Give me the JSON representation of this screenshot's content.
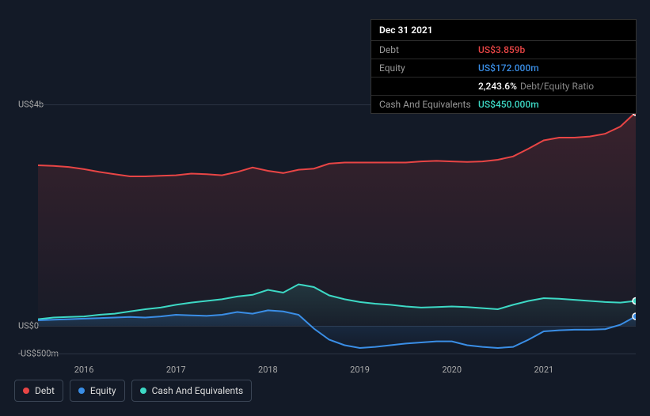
{
  "chart": {
    "type": "area",
    "background_color": "#131a27",
    "grid_color": "#2a3342",
    "axis_label_color": "#aaaaaa",
    "axis_fontsize": 11,
    "x_years": [
      2016,
      2017,
      2018,
      2019,
      2020,
      2021
    ],
    "x_start": 2015.5,
    "x_end": 2022.0,
    "y_ticks": [
      {
        "value": 4000,
        "label": "US$4b"
      },
      {
        "value": 0,
        "label": "US$0"
      },
      {
        "value": -500,
        "label": "-US$500m"
      }
    ],
    "y_min": -600,
    "y_max": 4200,
    "series": {
      "debt": {
        "label": "Debt",
        "color": "#e84545",
        "fill_opacity": 0.18,
        "values": [
          2900,
          2890,
          2870,
          2830,
          2780,
          2740,
          2700,
          2700,
          2710,
          2720,
          2750,
          2740,
          2720,
          2780,
          2860,
          2800,
          2760,
          2820,
          2840,
          2930,
          2950,
          2950,
          2950,
          2950,
          2950,
          2970,
          2980,
          2970,
          2960,
          2970,
          3000,
          3060,
          3200,
          3350,
          3400,
          3400,
          3420,
          3470,
          3600,
          3859
        ]
      },
      "equity": {
        "label": "Equity",
        "color": "#3a8ee6",
        "fill_opacity": 0.2,
        "values": [
          100,
          110,
          120,
          130,
          140,
          150,
          160,
          150,
          170,
          200,
          190,
          180,
          200,
          250,
          220,
          280,
          260,
          200,
          -50,
          -250,
          -350,
          -400,
          -380,
          -350,
          -320,
          -300,
          -280,
          -280,
          -350,
          -380,
          -400,
          -380,
          -250,
          -100,
          -80,
          -70,
          -70,
          -60,
          20,
          172
        ]
      },
      "cash": {
        "label": "Cash And Equivalents",
        "color": "#3dd9c5",
        "fill_opacity": 0.14,
        "values": [
          120,
          150,
          160,
          170,
          200,
          220,
          260,
          300,
          330,
          380,
          420,
          450,
          480,
          530,
          560,
          650,
          600,
          750,
          700,
          550,
          480,
          430,
          400,
          380,
          350,
          330,
          340,
          350,
          340,
          320,
          300,
          380,
          450,
          500,
          490,
          470,
          450,
          430,
          420,
          450
        ]
      }
    }
  },
  "tooltip": {
    "date": "Dec 31 2021",
    "rows": [
      {
        "label": "Debt",
        "value": "US$3.859b",
        "class": "debt"
      },
      {
        "label": "Equity",
        "value": "US$172.000m",
        "class": "equity"
      },
      {
        "label": "",
        "value": "2,243.6%",
        "suffix": "Debt/Equity Ratio",
        "class": "ratio"
      },
      {
        "label": "Cash And Equivalents",
        "value": "US$450.000m",
        "class": "cash"
      }
    ]
  },
  "legend": [
    {
      "label": "Debt",
      "color": "#e84545",
      "key": "debt"
    },
    {
      "label": "Equity",
      "color": "#3a8ee6",
      "key": "equity"
    },
    {
      "label": "Cash And Equivalents",
      "color": "#3dd9c5",
      "key": "cash"
    }
  ]
}
